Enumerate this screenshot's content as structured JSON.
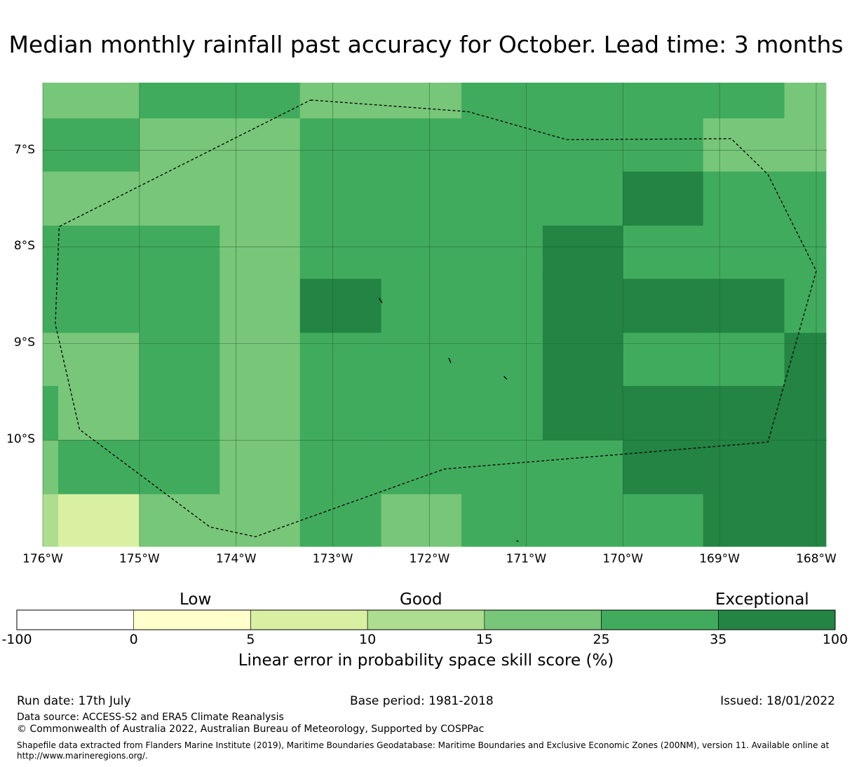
{
  "title": "Median monthly rainfall past accuracy for October. Lead time: 3 months",
  "map": {
    "lon_range": [
      -176,
      -168
    ],
    "lat_range": [
      -11.1,
      -6.3
    ],
    "lat_ticks": [
      {
        "value": -7,
        "label": "7°S"
      },
      {
        "value": -8,
        "label": "8°S"
      },
      {
        "value": -9,
        "label": "9°S"
      },
      {
        "value": -10,
        "label": "10°S"
      }
    ],
    "lon_ticks": [
      {
        "value": -176,
        "label": "176°W"
      },
      {
        "value": -175,
        "label": "175°W"
      },
      {
        "value": -174,
        "label": "174°W"
      },
      {
        "value": -173,
        "label": "173°W"
      },
      {
        "value": -172,
        "label": "172°W"
      },
      {
        "value": -171,
        "label": "171°W"
      },
      {
        "value": -170,
        "label": "170°W"
      },
      {
        "value": -169,
        "label": "169°W"
      },
      {
        "value": -168,
        "label": "168°W"
      }
    ],
    "cell_lon_edges": [
      -176,
      -175.84,
      -175,
      -174.17,
      -173.34,
      -172.5,
      -171.67,
      -170.83,
      -170,
      -169.17,
      -168.33,
      -167.9
    ],
    "cell_lat_edges": [
      -6.3,
      -6.67,
      -7.22,
      -7.78,
      -8.33,
      -8.89,
      -9.44,
      -10.0,
      -10.56,
      -11.1
    ],
    "score_bins": [
      -100,
      0,
      5,
      10,
      15,
      25,
      35,
      100
    ],
    "grid": [
      [
        20,
        20,
        30,
        30,
        20,
        20,
        30,
        30,
        30,
        30,
        20
      ],
      [
        30,
        30,
        20,
        20,
        30,
        30,
        30,
        30,
        30,
        20,
        20
      ],
      [
        20,
        20,
        20,
        20,
        30,
        30,
        30,
        30,
        40,
        30,
        30
      ],
      [
        30,
        30,
        30,
        20,
        30,
        30,
        30,
        40,
        30,
        30,
        30
      ],
      [
        30,
        30,
        30,
        20,
        40,
        30,
        30,
        40,
        40,
        40,
        30
      ],
      [
        20,
        20,
        30,
        20,
        30,
        30,
        30,
        40,
        30,
        30,
        40
      ],
      [
        30,
        20,
        30,
        20,
        30,
        30,
        30,
        40,
        40,
        40,
        40
      ],
      [
        20,
        30,
        30,
        20,
        30,
        30,
        30,
        30,
        40,
        40,
        40
      ],
      [
        12,
        8,
        20,
        20,
        30,
        20,
        30,
        30,
        30,
        40,
        40
      ]
    ],
    "eez_boundary": [
      [
        -173.23,
        -6.48
      ],
      [
        -171.6,
        -6.6
      ],
      [
        -170.58,
        -6.89
      ],
      [
        -168.88,
        -6.88
      ],
      [
        -168.5,
        -7.25
      ],
      [
        -168.0,
        -8.25
      ],
      [
        -168.5,
        -10.02
      ],
      [
        -171.85,
        -10.3
      ],
      [
        -173.8,
        -11.0
      ],
      [
        -174.27,
        -10.9
      ],
      [
        -175.62,
        -9.89
      ],
      [
        -175.87,
        -8.8
      ],
      [
        -175.83,
        -7.79
      ],
      [
        -173.23,
        -6.48
      ]
    ],
    "islands": [
      [
        [
          -172.52,
          -8.53
        ],
        [
          -172.49,
          -8.58
        ]
      ],
      [
        [
          -171.8,
          -9.15
        ],
        [
          -171.78,
          -9.2
        ]
      ],
      [
        [
          -171.23,
          -9.34
        ],
        [
          -171.2,
          -9.37
        ]
      ],
      [
        [
          -171.1,
          -11.04
        ],
        [
          -171.08,
          -11.05
        ]
      ]
    ]
  },
  "colorbar": {
    "categories": [
      "Low",
      "Good",
      "Exceptional"
    ],
    "colors": [
      "#ffffff",
      "#ffffcc",
      "#d9f0a3",
      "#addd8e",
      "#78c679",
      "#41ab5d",
      "#238443"
    ],
    "tick_labels": [
      "-100",
      "0",
      "5",
      "10",
      "15",
      "25",
      "35",
      "100"
    ],
    "label": "Linear error in probability space skill score (%)"
  },
  "footer": {
    "run_date": "Run date: 17th July",
    "base_period": "Base period: 1981-2018",
    "issued": "Issued: 18/01/2022",
    "data_source": "Data source: ACCESS-S2 and ERA5 Climate Reanalysis",
    "copyright": "© Commonwealth of Australia 2022, Australian Bureau of Meteorology, Supported by COSPPac",
    "shapefile_note": "Shapefile data extracted from Flanders Marine Institute (2019), Maritime Boundaries Geodatabase: Maritime Boundaries and Exclusive Economic Zones (200NM), version 11. Available online at http://www.marineregions.org/."
  }
}
